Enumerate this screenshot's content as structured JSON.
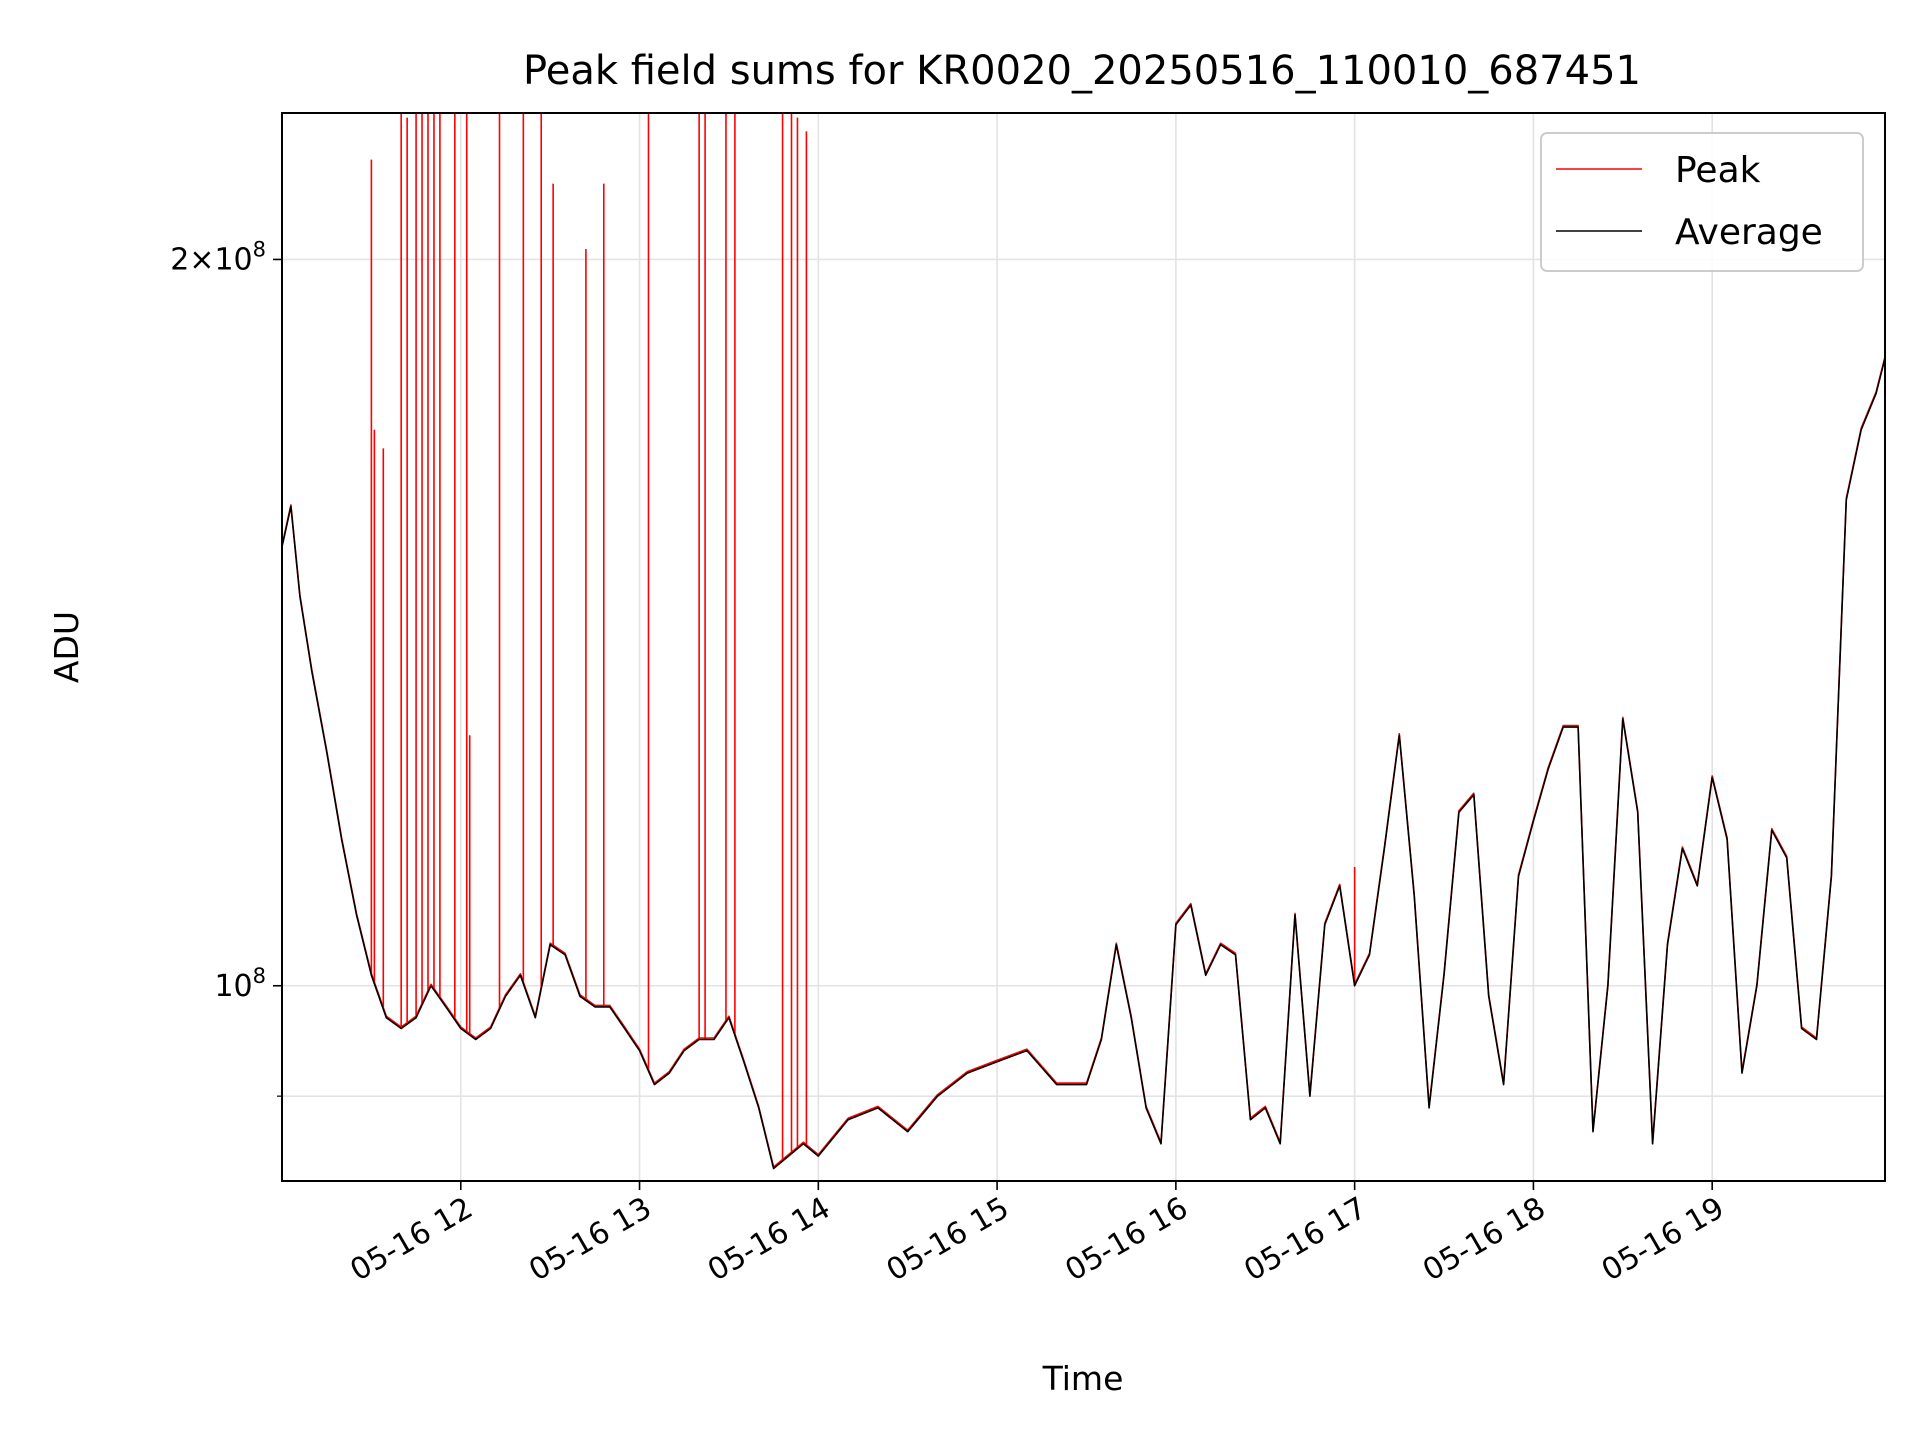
{
  "chart_data": {
    "type": "line",
    "title": "Peak field sums for KR0020_20250516_110010_687451",
    "xlabel": "Time",
    "ylabel": "ADU",
    "y_scale": "log",
    "xlim": [
      "05-16 11:00",
      "05-16 19:58"
    ],
    "ylim": [
      83000000,
      230000000
    ],
    "x_ticks": [
      "05-16 12",
      "05-16 13",
      "05-16 14",
      "05-16 15",
      "05-16 16",
      "05-16 17",
      "05-16 18",
      "05-16 19"
    ],
    "y_ticks": [
      {
        "label": "2×10^8",
        "value": 200000000
      },
      {
        "label": "10^8",
        "value": 100000000
      }
    ],
    "grid": true,
    "legend": {
      "position": "top-right",
      "entries": [
        "Peak",
        "Average"
      ]
    },
    "colors": {
      "peak": "#ff0000",
      "average": "#000000"
    },
    "series": [
      {
        "name": "Average",
        "key": "average",
        "x": [
          "05-16 11:00",
          "05-16 11:03",
          "05-16 11:06",
          "05-16 11:10",
          "05-16 11:15",
          "05-16 11:20",
          "05-16 11:25",
          "05-16 11:30",
          "05-16 11:35",
          "05-16 11:40",
          "05-16 11:45",
          "05-16 11:50",
          "05-16 11:55",
          "05-16 12:00",
          "05-16 12:05",
          "05-16 12:10",
          "05-16 12:15",
          "05-16 12:20",
          "05-16 12:25",
          "05-16 12:30",
          "05-16 12:35",
          "05-16 12:40",
          "05-16 12:45",
          "05-16 12:50",
          "05-16 12:55",
          "05-16 13:00",
          "05-16 13:05",
          "05-16 13:10",
          "05-16 13:15",
          "05-16 13:20",
          "05-16 13:25",
          "05-16 13:30",
          "05-16 13:35",
          "05-16 13:40",
          "05-16 13:45",
          "05-16 13:50",
          "05-16 13:55",
          "05-16 14:00",
          "05-16 14:10",
          "05-16 14:20",
          "05-16 14:30",
          "05-16 14:40",
          "05-16 14:50",
          "05-16 15:00",
          "05-16 15:10",
          "05-16 15:20",
          "05-16 15:30",
          "05-16 15:35",
          "05-16 15:40",
          "05-16 15:45",
          "05-16 15:50",
          "05-16 15:55",
          "05-16 16:00",
          "05-16 16:05",
          "05-16 16:10",
          "05-16 16:15",
          "05-16 16:20",
          "05-16 16:25",
          "05-16 16:30",
          "05-16 16:35",
          "05-16 16:40",
          "05-16 16:45",
          "05-16 16:50",
          "05-16 16:55",
          "05-16 17:00",
          "05-16 17:05",
          "05-16 17:10",
          "05-16 17:15",
          "05-16 17:20",
          "05-16 17:25",
          "05-16 17:30",
          "05-16 17:35",
          "05-16 17:40",
          "05-16 17:45",
          "05-16 17:50",
          "05-16 17:55",
          "05-16 18:00",
          "05-16 18:05",
          "05-16 18:10",
          "05-16 18:15",
          "05-16 18:20",
          "05-16 18:25",
          "05-16 18:30",
          "05-16 18:35",
          "05-16 18:40",
          "05-16 18:45",
          "05-16 18:50",
          "05-16 18:55",
          "05-16 19:00",
          "05-16 19:05",
          "05-16 19:10",
          "05-16 19:15",
          "05-16 19:20",
          "05-16 19:25",
          "05-16 19:30",
          "05-16 19:35",
          "05-16 19:40",
          "05-16 19:45",
          "05-16 19:50",
          "05-16 19:55",
          "05-16 19:58"
        ],
        "values": [
          152000000,
          158000000,
          145000000,
          135000000,
          125000000,
          115000000,
          107000000,
          101000000,
          97000000,
          96000000,
          97000000,
          100000000,
          98000000,
          96000000,
          95000000,
          96000000,
          99000000,
          101000000,
          97000000,
          104000000,
          103000000,
          99000000,
          98000000,
          98000000,
          96000000,
          94000000,
          91000000,
          92000000,
          94000000,
          95000000,
          95000000,
          97000000,
          93000000,
          89000000,
          84000000,
          85000000,
          86000000,
          85000000,
          88000000,
          89000000,
          87000000,
          90000000,
          92000000,
          93000000,
          94000000,
          91000000,
          91000000,
          95000000,
          104000000,
          97000000,
          89000000,
          86000000,
          106000000,
          108000000,
          101000000,
          104000000,
          103000000,
          88000000,
          89000000,
          86000000,
          107000000,
          90000000,
          106000000,
          110000000,
          100000000,
          103000000,
          114000000,
          127000000,
          109000000,
          89000000,
          101000000,
          118000000,
          120000000,
          99000000,
          91000000,
          111000000,
          117000000,
          123000000,
          128000000,
          128000000,
          87000000,
          100000000,
          129000000,
          118000000,
          86000000,
          104000000,
          114000000,
          110000000,
          122000000,
          115000000,
          92000000,
          100000000,
          116000000,
          113000000,
          96000000,
          95000000,
          111000000,
          159000000,
          170000000,
          176000000,
          182000000
        ]
      },
      {
        "name": "Peak",
        "key": "peak",
        "spikes": [
          {
            "x": "05-16 11:30",
            "y": 220000000
          },
          {
            "x": "05-16 11:31",
            "y": 170000000
          },
          {
            "x": "05-16 11:34",
            "y": 167000000
          },
          {
            "x": "05-16 11:40",
            "y": 230000000
          },
          {
            "x": "05-16 11:42",
            "y": 229000000
          },
          {
            "x": "05-16 11:45",
            "y": 230000000
          },
          {
            "x": "05-16 11:47",
            "y": 230000000
          },
          {
            "x": "05-16 11:49",
            "y": 230000000
          },
          {
            "x": "05-16 11:51",
            "y": 230000000
          },
          {
            "x": "05-16 11:53",
            "y": 230000000
          },
          {
            "x": "05-16 11:58",
            "y": 230000000
          },
          {
            "x": "05-16 12:02",
            "y": 230000000
          },
          {
            "x": "05-16 12:03",
            "y": 127000000
          },
          {
            "x": "05-16 12:13",
            "y": 230000000
          },
          {
            "x": "05-16 12:21",
            "y": 230000000
          },
          {
            "x": "05-16 12:27",
            "y": 230000000
          },
          {
            "x": "05-16 12:31",
            "y": 215000000
          },
          {
            "x": "05-16 12:42",
            "y": 202000000
          },
          {
            "x": "05-16 12:48",
            "y": 215000000
          },
          {
            "x": "05-16 13:03",
            "y": 230000000
          },
          {
            "x": "05-16 13:20",
            "y": 230000000
          },
          {
            "x": "05-16 13:22",
            "y": 230000000
          },
          {
            "x": "05-16 13:29",
            "y": 230000000
          },
          {
            "x": "05-16 13:32",
            "y": 230000000
          },
          {
            "x": "05-16 13:48",
            "y": 230000000
          },
          {
            "x": "05-16 13:51",
            "y": 230000000
          },
          {
            "x": "05-16 13:53",
            "y": 229000000
          },
          {
            "x": "05-16 13:56",
            "y": 226000000
          },
          {
            "x": "05-16 17:00",
            "y": 112000000
          },
          {
            "x": "05-16 19:20",
            "y": 116000000
          }
        ]
      }
    ]
  }
}
